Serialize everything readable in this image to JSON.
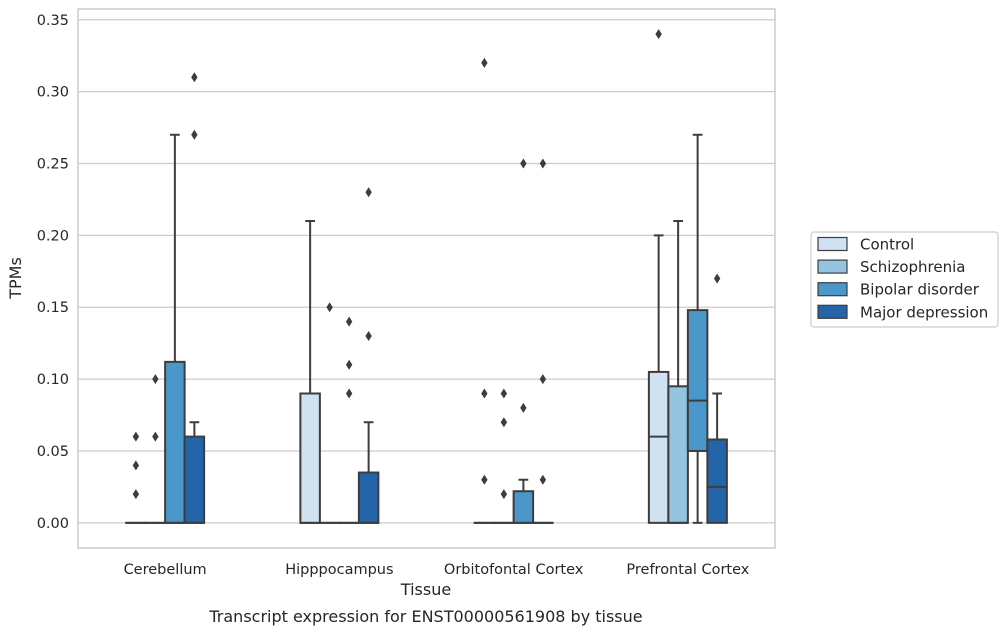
{
  "chart_data": {
    "type": "box",
    "title": "",
    "caption": "Transcript expression for ENST00000561908 by tissue",
    "xlabel": "Tissue",
    "ylabel": "TPMs",
    "ylim": [
      -0.0175,
      0.3575
    ],
    "yticks": [
      "0.00",
      "0.05",
      "0.10",
      "0.15",
      "0.20",
      "0.25",
      "0.30",
      "0.35"
    ],
    "grid": "horizontal",
    "legend_position": "right",
    "categories": [
      "Cerebellum",
      "Hipppocampus",
      "Orbitofontal Cortex",
      "Prefrontal Cortex"
    ],
    "series": [
      {
        "name": "Control",
        "color": "#d0e1f2"
      },
      {
        "name": "Schizophrenia",
        "color": "#94c4df"
      },
      {
        "name": "Bipolar disorder",
        "color": "#4a98c9"
      },
      {
        "name": "Major depression",
        "color": "#2464a8"
      }
    ],
    "boxes": [
      [
        {
          "q1": 0,
          "median": 0,
          "q3": 0,
          "whislo": 0,
          "whishi": 0,
          "fliers": [
            0.02,
            0.04,
            0.06
          ]
        },
        {
          "q1": 0,
          "median": 0,
          "q3": 0,
          "whislo": 0,
          "whishi": 0,
          "fliers": [
            0.06,
            0.1
          ]
        },
        {
          "q1": 0,
          "median": 0,
          "q3": 0.112,
          "whislo": 0,
          "whishi": 0.27,
          "fliers": []
        },
        {
          "q1": 0,
          "median": 0,
          "q3": 0.06,
          "whislo": 0,
          "whishi": 0.07,
          "fliers": [
            0.27,
            0.31
          ]
        }
      ],
      [
        {
          "q1": 0,
          "median": 0,
          "q3": 0.09,
          "whislo": 0,
          "whishi": 0.21,
          "fliers": []
        },
        {
          "q1": 0,
          "median": 0,
          "q3": 0,
          "whislo": 0,
          "whishi": 0,
          "fliers": [
            0.15
          ]
        },
        {
          "q1": 0,
          "median": 0,
          "q3": 0,
          "whislo": 0,
          "whishi": 0,
          "fliers": [
            0.09,
            0.11,
            0.14
          ]
        },
        {
          "q1": 0,
          "median": 0,
          "q3": 0.035,
          "whislo": 0,
          "whishi": 0.07,
          "fliers": [
            0.13,
            0.23
          ]
        }
      ],
      [
        {
          "q1": 0,
          "median": 0,
          "q3": 0,
          "whislo": 0,
          "whishi": 0,
          "fliers": [
            0.03,
            0.09,
            0.32
          ]
        },
        {
          "q1": 0,
          "median": 0,
          "q3": 0,
          "whislo": 0,
          "whishi": 0,
          "fliers": [
            0.02,
            0.07,
            0.09
          ]
        },
        {
          "q1": 0,
          "median": 0,
          "q3": 0.022,
          "whislo": 0,
          "whishi": 0.03,
          "fliers": [
            0.08,
            0.25
          ]
        },
        {
          "q1": 0,
          "median": 0,
          "q3": 0,
          "whislo": 0,
          "whishi": 0,
          "fliers": [
            0.03,
            0.1,
            0.25
          ]
        }
      ],
      [
        {
          "q1": 0,
          "median": 0.06,
          "q3": 0.105,
          "whislo": 0,
          "whishi": 0.2,
          "fliers": [
            0.34
          ]
        },
        {
          "q1": 0,
          "median": 0,
          "q3": 0.095,
          "whislo": 0,
          "whishi": 0.21,
          "fliers": []
        },
        {
          "q1": 0.05,
          "median": 0.085,
          "q3": 0.148,
          "whislo": 0,
          "whishi": 0.27,
          "fliers": []
        },
        {
          "q1": 0,
          "median": 0.025,
          "q3": 0.058,
          "whislo": 0,
          "whishi": 0.09,
          "fliers": [
            0.17
          ]
        }
      ]
    ]
  }
}
